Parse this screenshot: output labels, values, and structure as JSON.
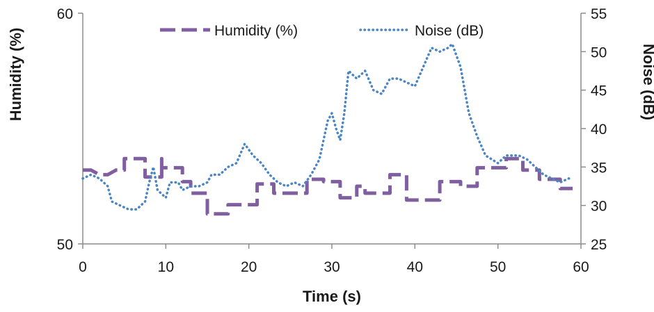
{
  "chart_data": {
    "type": "line",
    "title": "",
    "xlabel": "Time (s)",
    "ylabel_left": "Humidity (%)",
    "ylabel_right": "Noise (dB)",
    "xlim": [
      0,
      60
    ],
    "ylim_left": [
      50,
      60
    ],
    "ylim_right": [
      25,
      55
    ],
    "x_ticks": [
      0,
      10,
      20,
      30,
      40,
      50,
      60
    ],
    "y_ticks_left": [
      50,
      60
    ],
    "y_ticks_right": [
      25,
      30,
      35,
      40,
      45,
      50,
      55
    ],
    "grid": false,
    "legend_position": "top-center",
    "series": [
      {
        "name": "Humidity (%)",
        "axis": "left",
        "style": "dashed",
        "color": "#7f5f9f",
        "points": [
          [
            0,
            53.2
          ],
          [
            1,
            53.2
          ],
          [
            2,
            53.0
          ],
          [
            3,
            53.0
          ],
          [
            4,
            53.2
          ],
          [
            5,
            53.2
          ],
          [
            5,
            53.7
          ],
          [
            7.5,
            53.7
          ],
          [
            7.5,
            52.9
          ],
          [
            9.5,
            52.9
          ],
          [
            9.5,
            53.7
          ],
          [
            9.5,
            53.3
          ],
          [
            12,
            53.3
          ],
          [
            12,
            52.7
          ],
          [
            13,
            52.7
          ],
          [
            13,
            52.2
          ],
          [
            15,
            52.2
          ],
          [
            15,
            51.3
          ],
          [
            17.5,
            51.3
          ],
          [
            17.5,
            51.7
          ],
          [
            21,
            51.7
          ],
          [
            21,
            52.6
          ],
          [
            23,
            52.6
          ],
          [
            23,
            52.2
          ],
          [
            27,
            52.2
          ],
          [
            27,
            52.8
          ],
          [
            29,
            52.8
          ],
          [
            29,
            52.7
          ],
          [
            31,
            52.7
          ],
          [
            31,
            52.0
          ],
          [
            33,
            52.0
          ],
          [
            33,
            52.5
          ],
          [
            34,
            52.5
          ],
          [
            34,
            52.2
          ],
          [
            37,
            52.2
          ],
          [
            37,
            53.0
          ],
          [
            39,
            53.0
          ],
          [
            39,
            51.9
          ],
          [
            43,
            51.9
          ],
          [
            43,
            52.7
          ],
          [
            45.5,
            52.7
          ],
          [
            45.5,
            52.5
          ],
          [
            47.5,
            52.5
          ],
          [
            47.5,
            53.3
          ],
          [
            51,
            53.3
          ],
          [
            51,
            53.7
          ],
          [
            53,
            53.7
          ],
          [
            53,
            53.2
          ],
          [
            55,
            53.2
          ],
          [
            55,
            52.8
          ],
          [
            57.5,
            52.8
          ],
          [
            57.5,
            52.4
          ],
          [
            59,
            52.4
          ]
        ]
      },
      {
        "name": "Noise (dB)",
        "axis": "right",
        "style": "dotted",
        "color": "#4a86c5",
        "points": [
          [
            0,
            33.5
          ],
          [
            1,
            34
          ],
          [
            2,
            33.5
          ],
          [
            3,
            32.5
          ],
          [
            3.5,
            30.5
          ],
          [
            4.5,
            30
          ],
          [
            5.5,
            29.5
          ],
          [
            6.5,
            29.5
          ],
          [
            7.5,
            30.5
          ],
          [
            8,
            33
          ],
          [
            8.5,
            35
          ],
          [
            9,
            32
          ],
          [
            10,
            31
          ],
          [
            10.5,
            33
          ],
          [
            11.5,
            33
          ],
          [
            12,
            32
          ],
          [
            13,
            32.5
          ],
          [
            14,
            32.5
          ],
          [
            15,
            33
          ],
          [
            15.5,
            34
          ],
          [
            16.5,
            34
          ],
          [
            17.5,
            35
          ],
          [
            18.5,
            35.5
          ],
          [
            19.5,
            38
          ],
          [
            20.5,
            36.5
          ],
          [
            21.5,
            35.5
          ],
          [
            22.5,
            34
          ],
          [
            23.5,
            33
          ],
          [
            24.5,
            32.5
          ],
          [
            25.5,
            33
          ],
          [
            26.5,
            32.5
          ],
          [
            27.5,
            34
          ],
          [
            28.5,
            36
          ],
          [
            29.5,
            41
          ],
          [
            30,
            42
          ],
          [
            30.5,
            40
          ],
          [
            31,
            38.5
          ],
          [
            31.5,
            42
          ],
          [
            32,
            47.5
          ],
          [
            33,
            46.5
          ],
          [
            34,
            47.5
          ],
          [
            35,
            45
          ],
          [
            36,
            44.5
          ],
          [
            37,
            46.5
          ],
          [
            38,
            46.5
          ],
          [
            39,
            46
          ],
          [
            40,
            45.5
          ],
          [
            41,
            48
          ],
          [
            42,
            50.5
          ],
          [
            43,
            50
          ],
          [
            44,
            50.5
          ],
          [
            44.5,
            51
          ],
          [
            45.5,
            48
          ],
          [
            46.5,
            42
          ],
          [
            47.5,
            39
          ],
          [
            48.5,
            36.5
          ],
          [
            50,
            35.5
          ],
          [
            51,
            36.5
          ],
          [
            52.5,
            36.5
          ],
          [
            53.5,
            36
          ],
          [
            54.5,
            35
          ],
          [
            55.5,
            34
          ],
          [
            56.5,
            33.5
          ],
          [
            57.5,
            33
          ],
          [
            58.5,
            33.5
          ],
          [
            59,
            33.5
          ]
        ]
      }
    ]
  }
}
